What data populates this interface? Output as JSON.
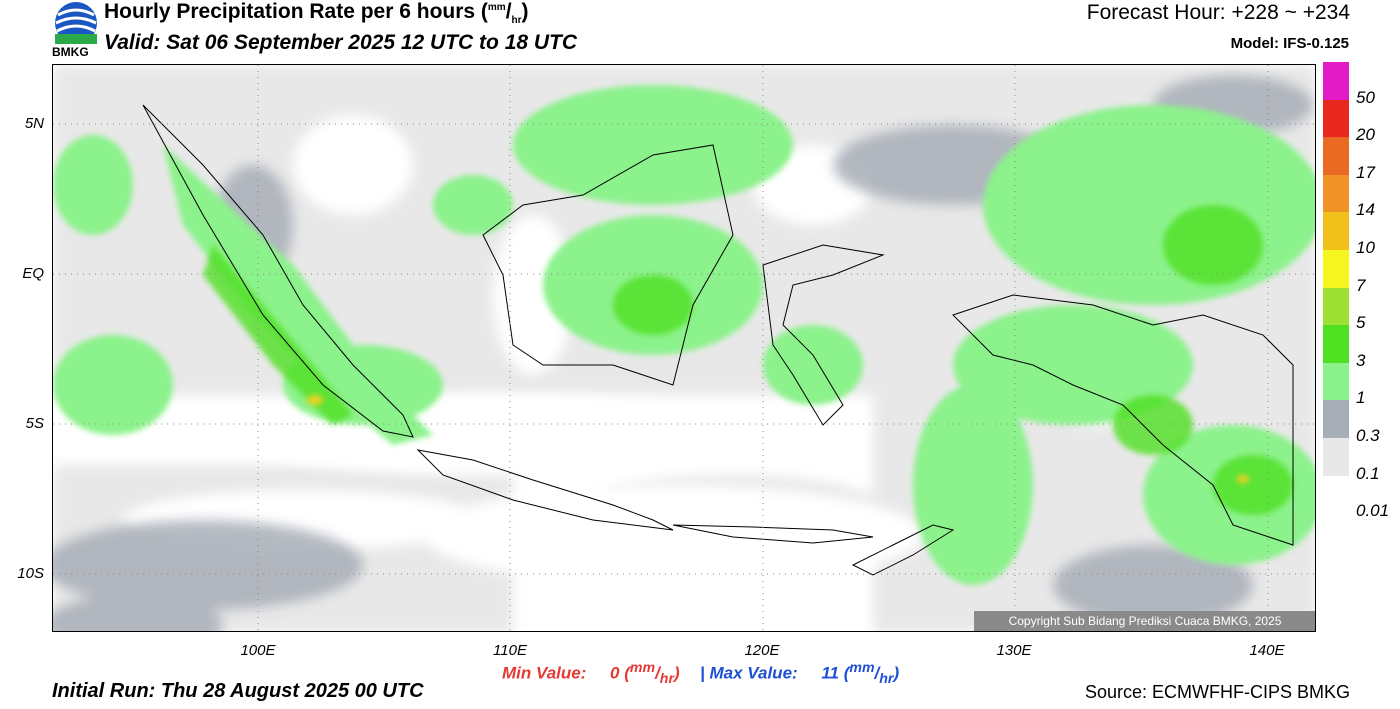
{
  "header": {
    "title_text": "Hourly Precipitation Rate per 6 hours (",
    "title_unit_sup": "mm",
    "title_unit_sub": "hr",
    "title_close": ")",
    "valid": "Valid: Sat 06 September 2025 12 UTC to 18 UTC",
    "forecast_hour": "Forecast Hour: +228 ~ +234",
    "model": "Model: IFS-0.125",
    "logo_text": "BMKG"
  },
  "axes": {
    "lat_labels": [
      "5N",
      "EQ",
      "5S",
      "10S"
    ],
    "lon_labels": [
      "100E",
      "110E",
      "120E",
      "130E",
      "140E"
    ]
  },
  "legend": {
    "colors": [
      "#e21bc7",
      "#e8281e",
      "#eb6a23",
      "#ef9326",
      "#f2c01a",
      "#f5f520",
      "#9fe035",
      "#4fe022",
      "#8cf28c",
      "#a8aeb8",
      "#e8e8e8"
    ],
    "labels": [
      "50",
      "20",
      "17",
      "14",
      "10",
      "7",
      "5",
      "3",
      "1",
      "0.3",
      "0.1",
      "0.01"
    ]
  },
  "stats": {
    "min_label": "Min Value:",
    "min_value": "0",
    "separator": "|",
    "max_label": "Max Value:",
    "max_value": "11",
    "unit_sup": "mm",
    "unit_sub": "hr"
  },
  "footer": {
    "initial_run": "Initial Run: Thu 28 August 2025 00 UTC",
    "source": "Source: ECMWFHF-CIPS BMKG",
    "copyright": "Copyright Sub Bidang Prediksi Cuaca BMKG, 2025"
  }
}
